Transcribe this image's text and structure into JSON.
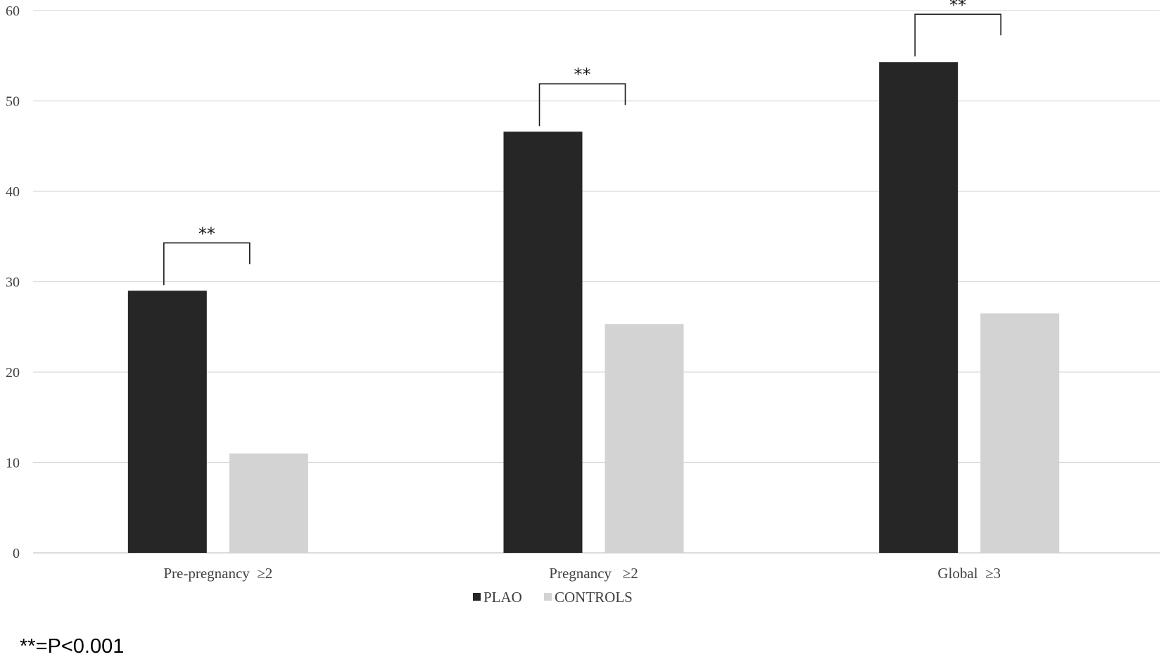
{
  "chart_data": {
    "type": "bar",
    "title": "",
    "xlabel": "",
    "ylabel": "",
    "categories": [
      "Pre-pregnancy  ≥2",
      "Pregnancy   ≥2",
      "Global  ≥3"
    ],
    "series": [
      {
        "name": "PLAO",
        "values": [
          29.0,
          46.6,
          54.3
        ],
        "color": "#262626"
      },
      {
        "name": "CONTROLS",
        "values": [
          11.0,
          25.3,
          26.5
        ],
        "color": "#d3d3d3"
      }
    ],
    "ylim": [
      0,
      60
    ],
    "yticks": [
      0,
      10,
      20,
      30,
      40,
      50,
      60
    ],
    "grid": true,
    "legend": "bottom",
    "significance": [
      "**",
      "**",
      "**"
    ],
    "footnote": "**=P<0.001"
  }
}
